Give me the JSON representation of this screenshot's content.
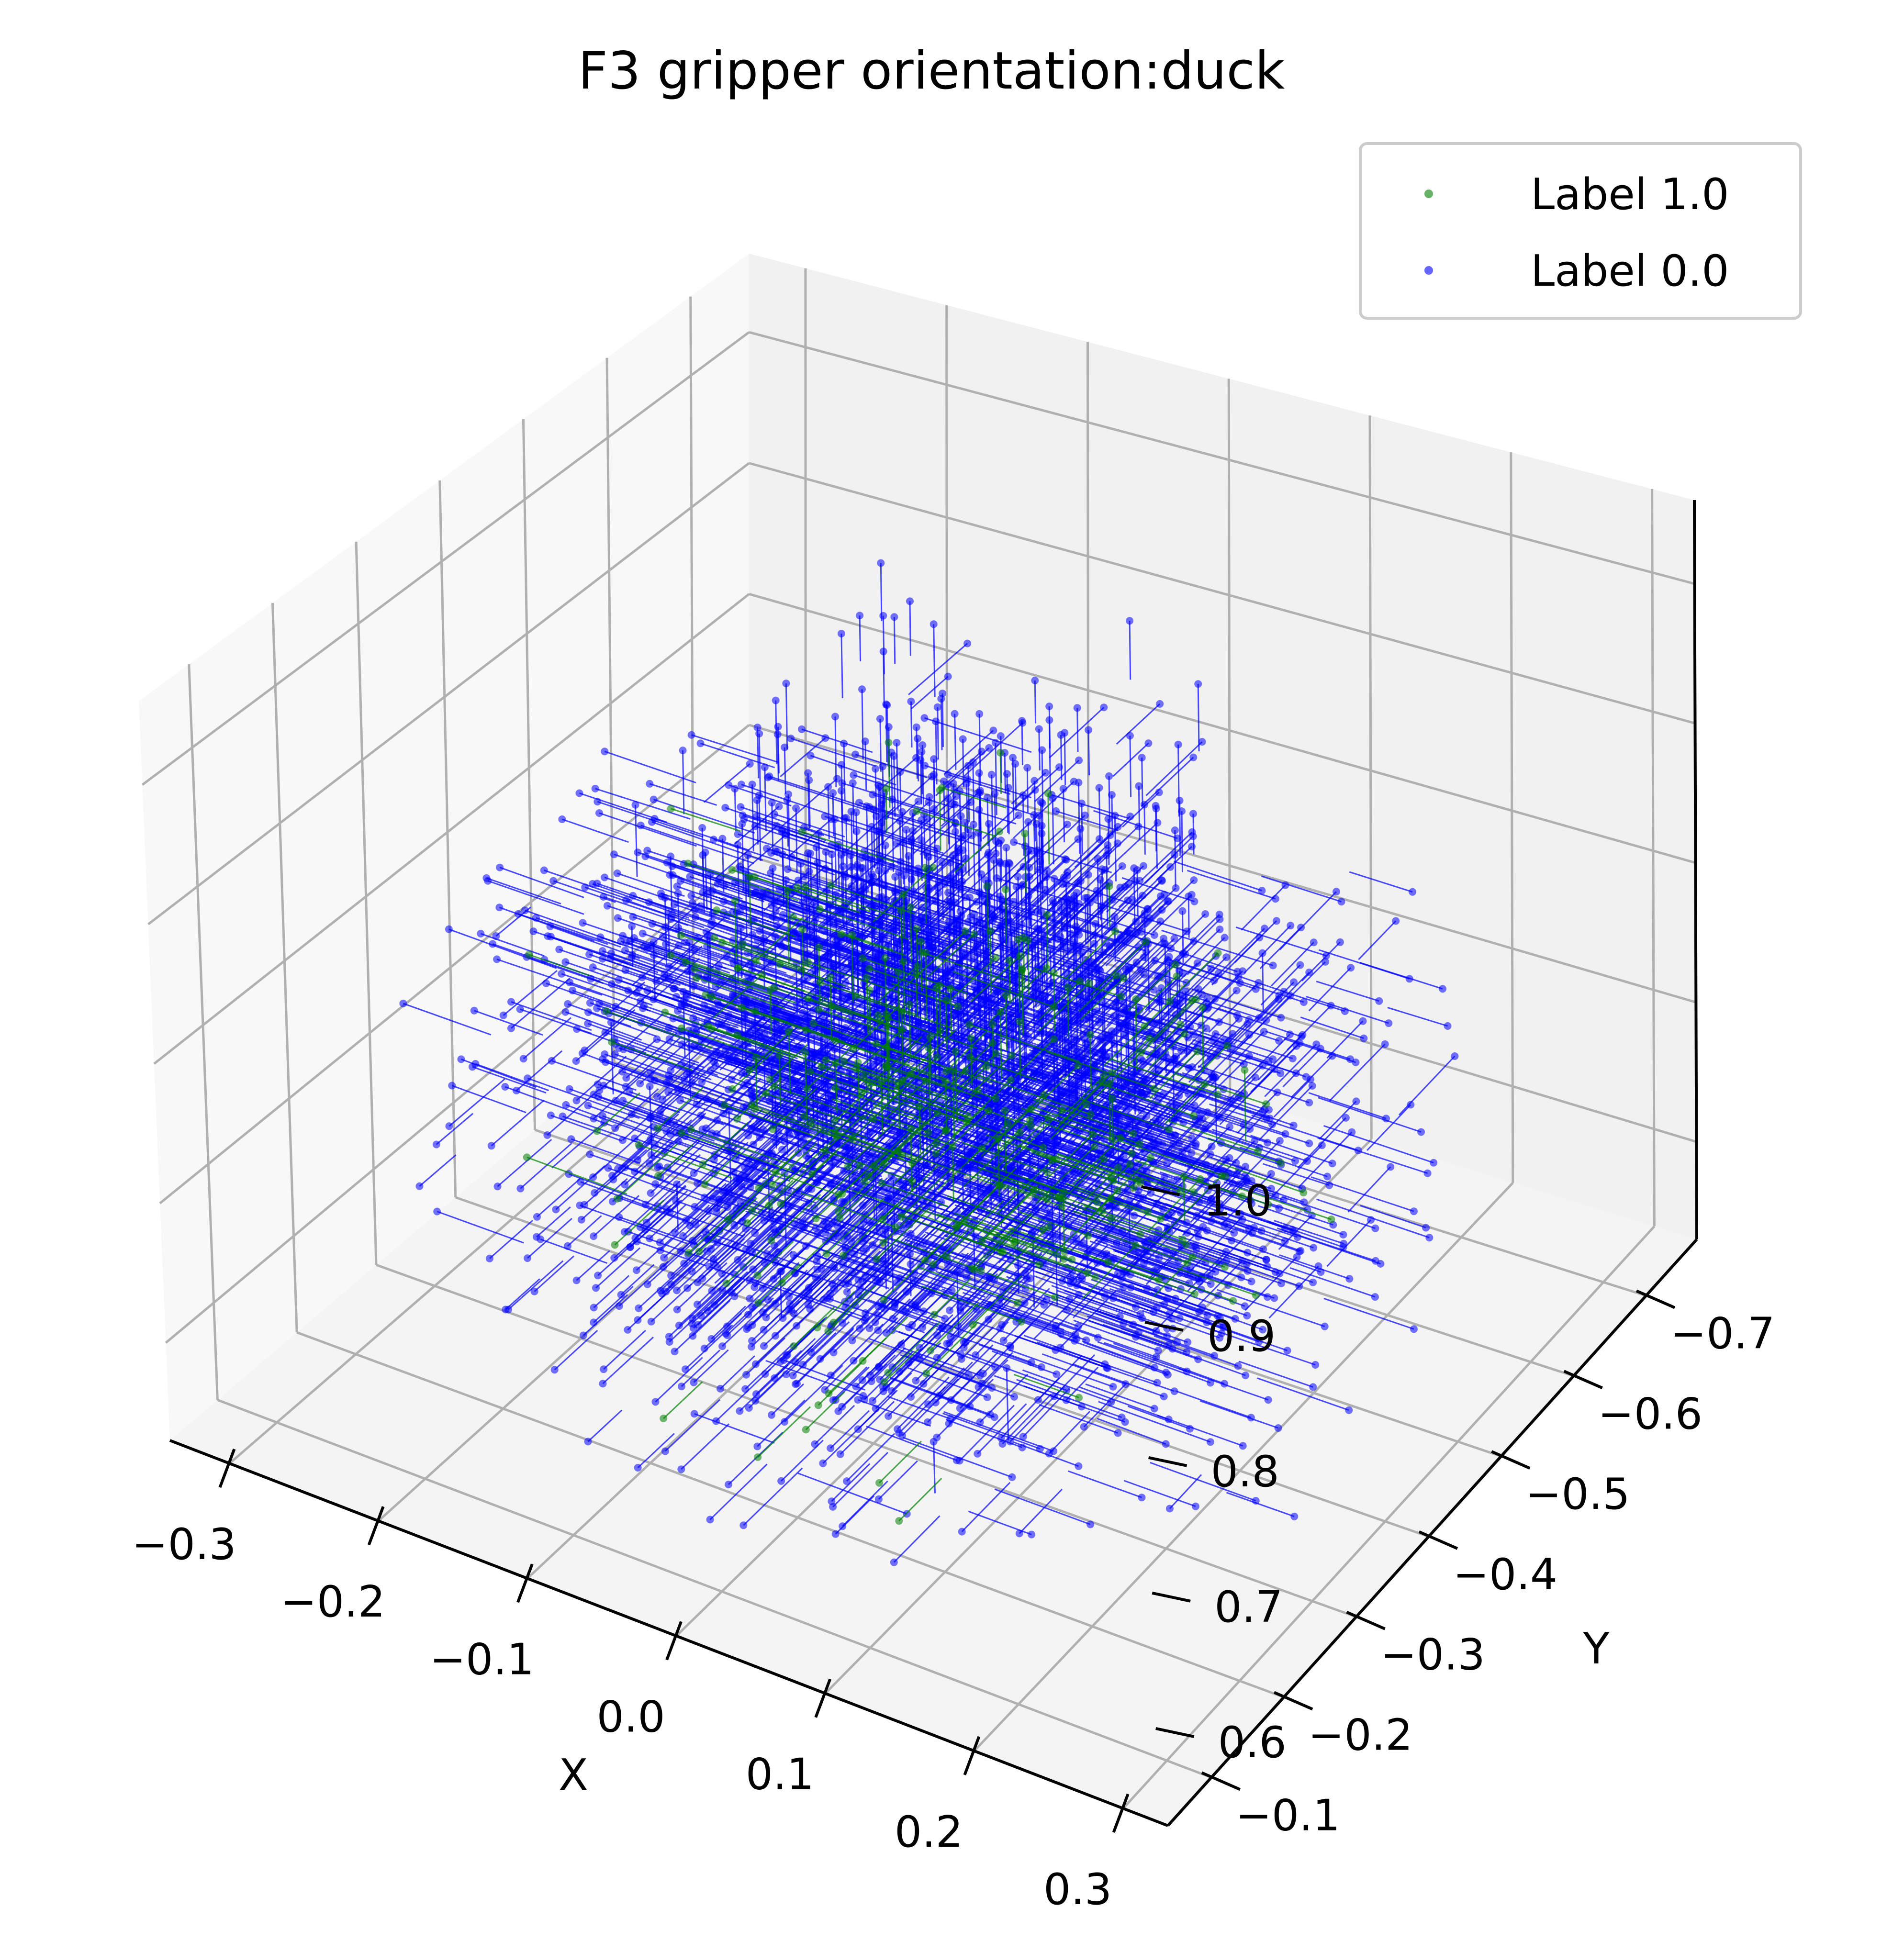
{
  "chart_data": {
    "type": "scatter",
    "projection": "3d",
    "title": "F3 gripper orientation:duck",
    "xlabel": "X",
    "ylabel": "Y",
    "zlabel": "",
    "xlim": [
      -0.34,
      0.33
    ],
    "ylim": [
      -0.77,
      -0.04
    ],
    "zlim": [
      0.53,
      1.06
    ],
    "xticks": [
      "−0.3",
      "−0.2",
      "−0.1",
      "0.0",
      "0.1",
      "0.2",
      "0.3"
    ],
    "yticks": [
      "−0.7",
      "−0.6",
      "−0.5",
      "−0.4",
      "−0.3",
      "−0.2",
      "−0.1"
    ],
    "zticks": [
      "0.6",
      "0.7",
      "0.8",
      "0.9",
      "1.0"
    ],
    "xtick_values": [
      -0.3,
      -0.2,
      -0.1,
      0.0,
      0.1,
      0.2,
      0.3
    ],
    "ytick_values": [
      -0.7,
      -0.6,
      -0.5,
      -0.4,
      -0.3,
      -0.2,
      -0.1
    ],
    "ztick_values": [
      0.6,
      0.7,
      0.8,
      0.9,
      1.0
    ],
    "grid": true,
    "legend_position": "top-right",
    "marks": "points with short orientation arrows",
    "series": [
      {
        "name": "Label 1.0",
        "color": "#008000",
        "point_count": 400,
        "clusters": [
          {
            "center": [
              0.0,
              -0.4,
              0.82
            ],
            "spread": [
              0.06,
              0.06,
              0.06
            ],
            "direction": "down"
          },
          {
            "center": [
              -0.12,
              -0.42,
              0.74
            ],
            "spread": [
              0.06,
              0.06,
              0.05
            ],
            "direction": "+x"
          },
          {
            "center": [
              0.12,
              -0.38,
              0.72
            ],
            "spread": [
              0.06,
              0.06,
              0.05
            ],
            "direction": "-x"
          },
          {
            "center": [
              0.0,
              -0.55,
              0.68
            ],
            "spread": [
              0.06,
              0.05,
              0.06
            ],
            "direction": "+y"
          },
          {
            "center": [
              0.0,
              -0.25,
              0.7
            ],
            "spread": [
              0.06,
              0.05,
              0.06
            ],
            "direction": "-y"
          }
        ]
      },
      {
        "name": "Label 0.0",
        "color": "#0000ff",
        "point_count": 3600,
        "clusters": [
          {
            "center": [
              0.0,
              -0.4,
              0.85
            ],
            "spread": [
              0.07,
              0.07,
              0.08
            ],
            "direction": "down"
          },
          {
            "center": [
              -0.14,
              -0.42,
              0.74
            ],
            "spread": [
              0.07,
              0.08,
              0.07
            ],
            "direction": "+x"
          },
          {
            "center": [
              0.14,
              -0.38,
              0.73
            ],
            "spread": [
              0.07,
              0.08,
              0.07
            ],
            "direction": "-x"
          },
          {
            "center": [
              0.0,
              -0.57,
              0.7
            ],
            "spread": [
              0.08,
              0.06,
              0.07
            ],
            "direction": "+y"
          },
          {
            "center": [
              0.0,
              -0.23,
              0.72
            ],
            "spread": [
              0.08,
              0.06,
              0.07
            ],
            "direction": "-y"
          }
        ]
      }
    ]
  }
}
